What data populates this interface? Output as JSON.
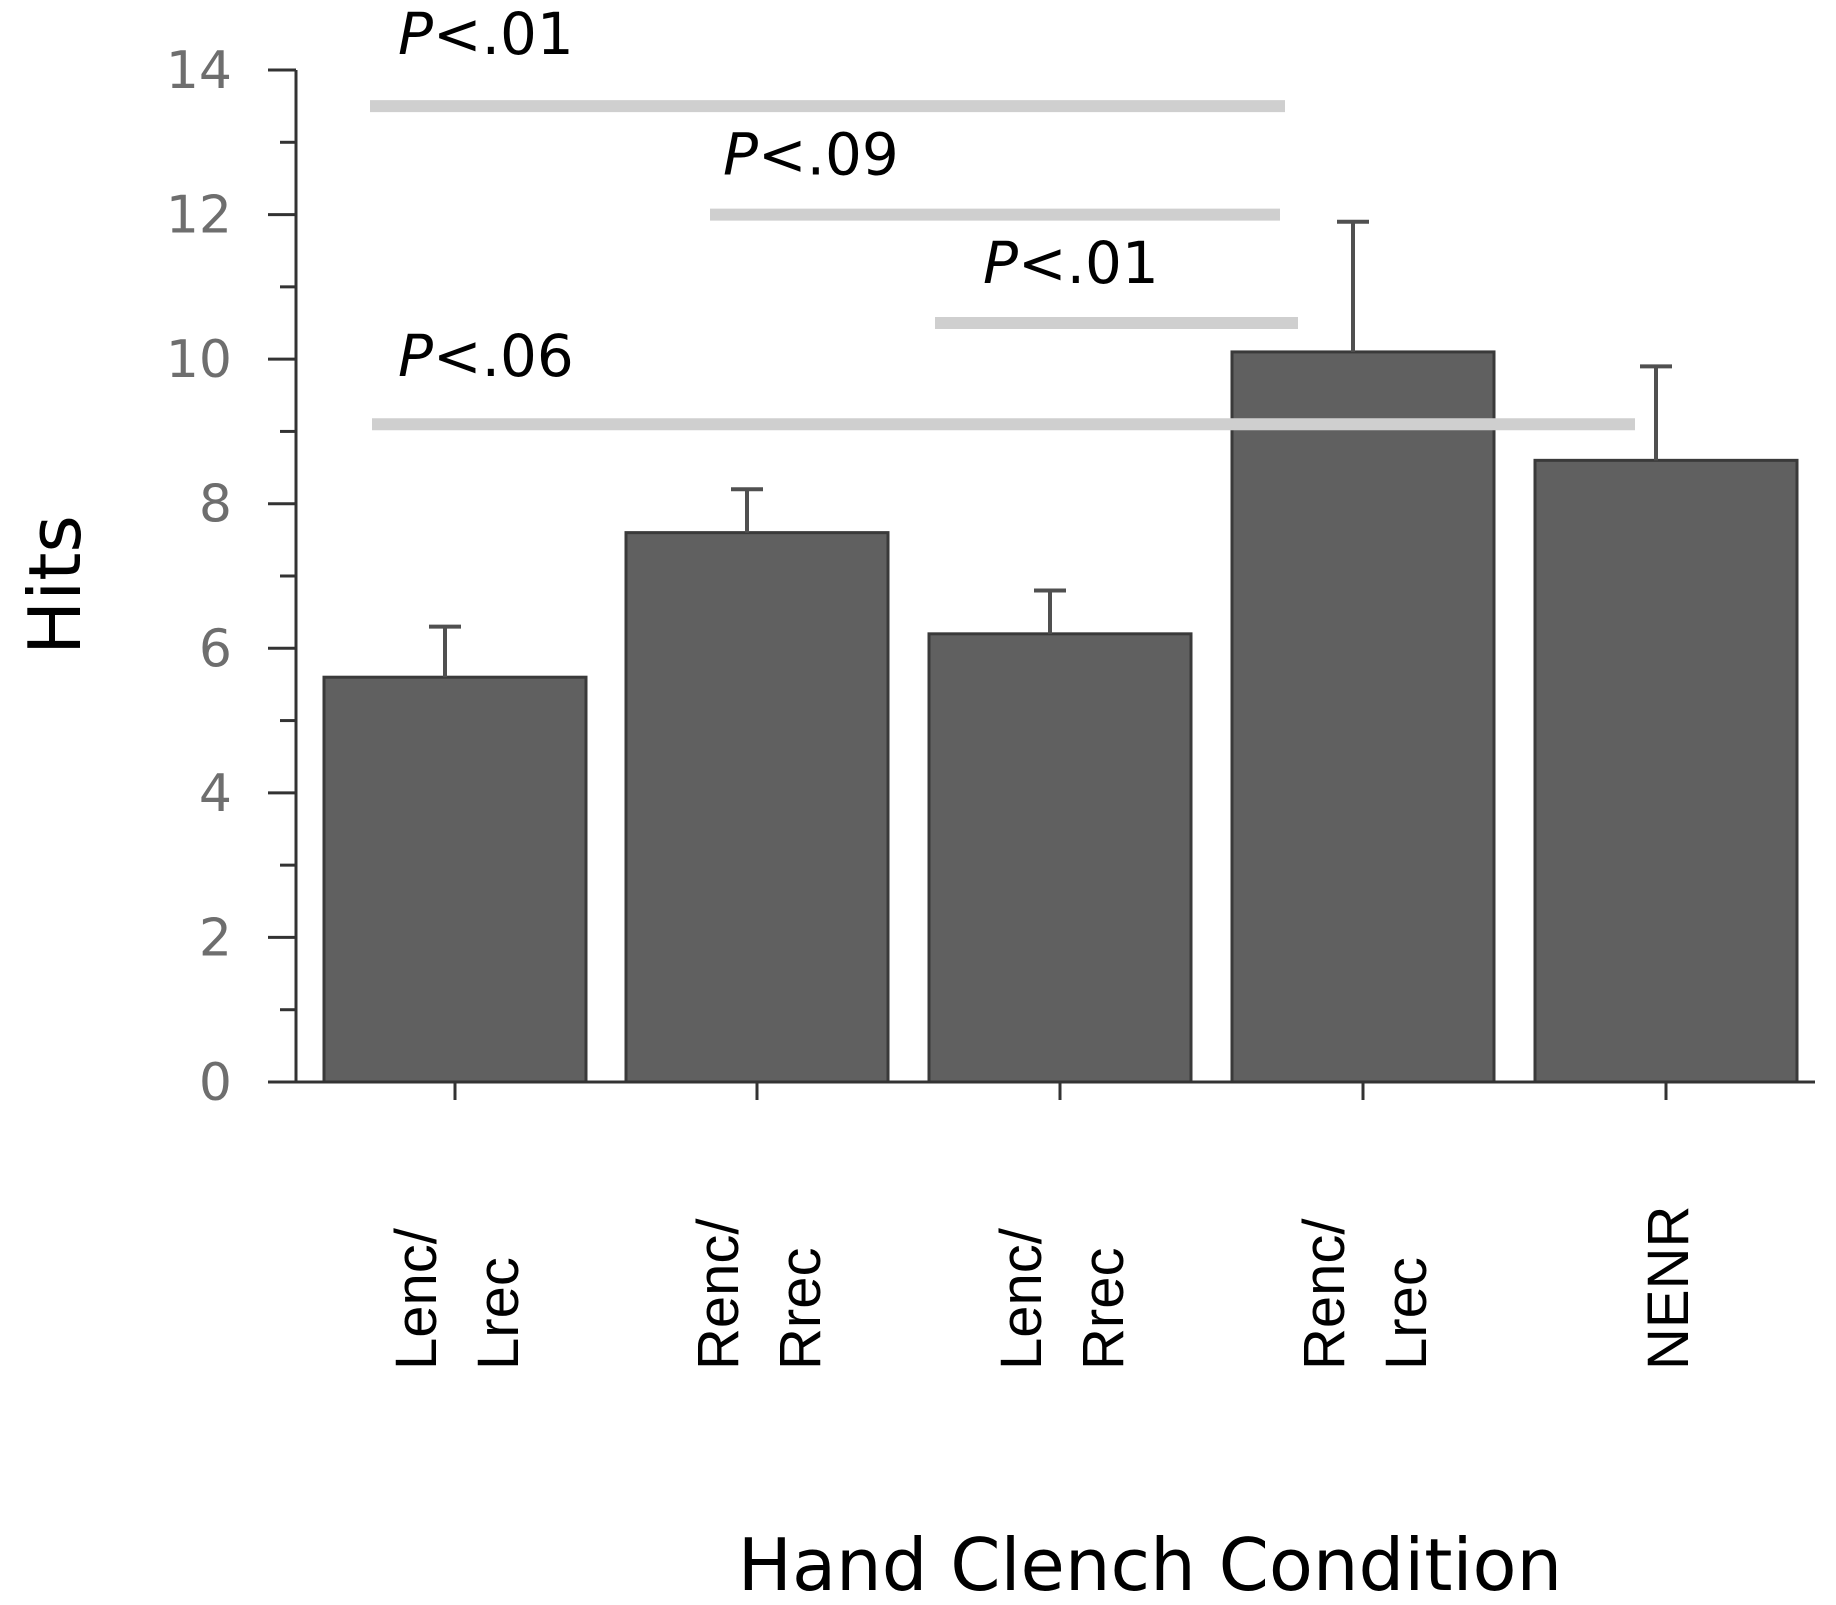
{
  "chart_data": {
    "type": "bar",
    "title": "",
    "xlabel": "Hand Clench Condition",
    "ylabel": "Hits",
    "ylim": [
      0,
      14
    ],
    "yticks": [
      0,
      2,
      4,
      6,
      8,
      10,
      12,
      14
    ],
    "grid": false,
    "categories": [
      [
        "Lenc/",
        "Lrec"
      ],
      [
        "Renc/",
        "Rrec"
      ],
      [
        "Lenc/",
        "Rrec"
      ],
      [
        "Renc/",
        "Lrec"
      ],
      [
        "NENR"
      ]
    ],
    "values": [
      5.6,
      7.6,
      6.2,
      10.1,
      8.6
    ],
    "error_upper": [
      6.3,
      8.2,
      6.8,
      11.9,
      9.9
    ],
    "significance": [
      {
        "label_prefix": "P",
        "label_rest": "<.01",
        "y": 13.5,
        "from": 0,
        "to": 3
      },
      {
        "label_prefix": "P",
        "label_rest": "<.09",
        "y": 12.0,
        "from": 1,
        "to": 3
      },
      {
        "label_prefix": "P",
        "label_rest": "<.01",
        "y": 10.5,
        "from": 2,
        "to": 3
      },
      {
        "label_prefix": "P",
        "label_rest": "<.06",
        "y": 9.1,
        "from": 0,
        "to": 4
      }
    ],
    "colors": {
      "bar": "#606060",
      "bar_edge": "#3a3a3a",
      "error": "#505050",
      "sig_line": "#cfcfcf",
      "axis": "#333333"
    }
  }
}
